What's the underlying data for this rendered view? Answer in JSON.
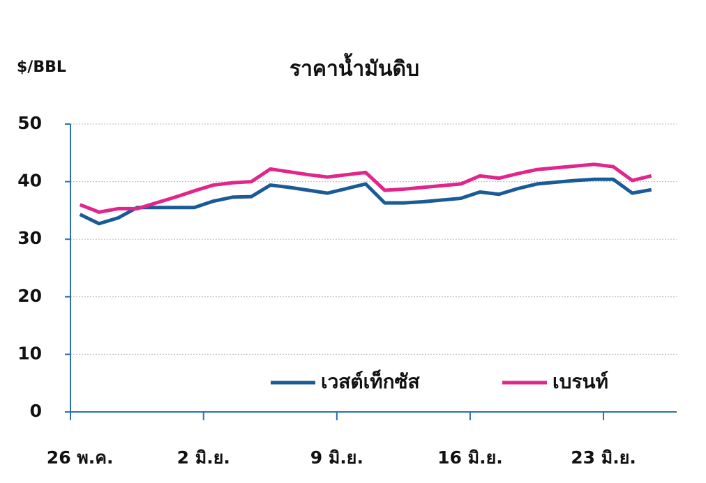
{
  "chart_data": {
    "type": "line",
    "title": "ราคาน้ำมันดิบ",
    "y_axis_label": "$/BBL",
    "categories": [
      "26 พ.ค.",
      null,
      null,
      null,
      null,
      null,
      null,
      "2 มิ.ย.",
      null,
      null,
      null,
      null,
      null,
      null,
      "9 มิ.ย.",
      null,
      null,
      null,
      null,
      null,
      null,
      "16 มิ.ย.",
      null,
      null,
      null,
      null,
      null,
      null,
      "23 มิ.ย.",
      null,
      null
    ],
    "series": [
      {
        "name": "เวสต์เท็กซัส",
        "color": "#1a5a96",
        "values": [
          34.3,
          32.7,
          33.7,
          35.5,
          35.5,
          35.5,
          35.5,
          36.6,
          37.3,
          37.4,
          39.4,
          39.0,
          38.5,
          38.0,
          38.8,
          39.6,
          36.3,
          36.3,
          36.5,
          36.8,
          37.1,
          38.2,
          37.8,
          38.8,
          39.6,
          39.9,
          40.2,
          40.4,
          40.4,
          38.0,
          38.6
        ]
      },
      {
        "name": "เบรนท์",
        "color": "#e0268a",
        "values": [
          36.0,
          34.7,
          35.3,
          35.3,
          36.3,
          37.3,
          38.4,
          39.4,
          39.8,
          40.0,
          42.2,
          41.7,
          41.2,
          40.8,
          41.2,
          41.6,
          38.5,
          38.7,
          39.0,
          39.3,
          39.6,
          41.0,
          40.6,
          41.4,
          42.1,
          42.4,
          42.7,
          43.0,
          42.6,
          40.2,
          41.0
        ]
      }
    ],
    "ylim": [
      0,
      50
    ],
    "yticks": [
      0,
      10,
      20,
      30,
      40,
      50
    ],
    "grid": true,
    "legend": "lower right"
  }
}
